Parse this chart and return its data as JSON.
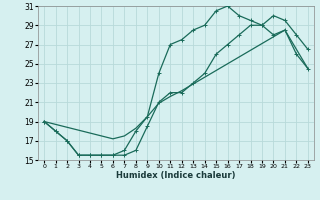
{
  "xlabel": "Humidex (Indice chaleur)",
  "bg_color": "#d6f0f0",
  "grid_color": "#b8dada",
  "line_color": "#1a6b5a",
  "xlim": [
    -0.5,
    23.5
  ],
  "ylim": [
    15,
    31
  ],
  "yticks": [
    15,
    17,
    19,
    21,
    23,
    25,
    27,
    29,
    31
  ],
  "xticks": [
    0,
    1,
    2,
    3,
    4,
    5,
    6,
    7,
    8,
    9,
    10,
    11,
    12,
    13,
    14,
    15,
    16,
    17,
    18,
    19,
    20,
    21,
    22,
    23
  ],
  "series1_x": [
    0,
    1,
    2,
    3,
    4,
    5,
    6,
    7,
    8,
    9,
    10,
    11,
    12,
    13,
    14,
    15,
    16,
    17,
    18,
    19,
    20,
    21,
    22,
    23
  ],
  "series1_y": [
    19,
    18,
    17,
    15.5,
    15.5,
    15.5,
    15.5,
    16,
    18,
    19.5,
    24,
    27,
    27.5,
    28.5,
    29,
    30.5,
    31,
    30,
    29.5,
    29,
    28,
    28.5,
    26,
    24.5
  ],
  "series2_x": [
    0,
    1,
    2,
    3,
    4,
    5,
    6,
    7,
    8,
    9,
    10,
    11,
    12,
    13,
    14,
    15,
    16,
    17,
    18,
    19,
    20,
    21,
    22,
    23
  ],
  "series2_y": [
    19,
    18,
    17,
    15.5,
    15.5,
    15.5,
    15.5,
    15.5,
    16,
    18.5,
    21,
    22,
    22,
    23,
    24,
    26,
    27,
    28,
    29,
    29,
    30,
    29.5,
    28,
    26.5
  ],
  "series3_x": [
    0,
    1,
    2,
    3,
    4,
    5,
    6,
    7,
    8,
    9,
    10,
    11,
    12,
    13,
    14,
    15,
    16,
    17,
    18,
    19,
    20,
    21,
    22,
    23
  ],
  "series3_y": [
    19,
    18.7,
    18.4,
    18.1,
    17.8,
    17.5,
    17.2,
    17.5,
    18.3,
    19.5,
    20.9,
    21.6,
    22.2,
    22.9,
    23.6,
    24.3,
    25.0,
    25.7,
    26.4,
    27.1,
    27.8,
    28.5,
    26.5,
    24.5
  ]
}
